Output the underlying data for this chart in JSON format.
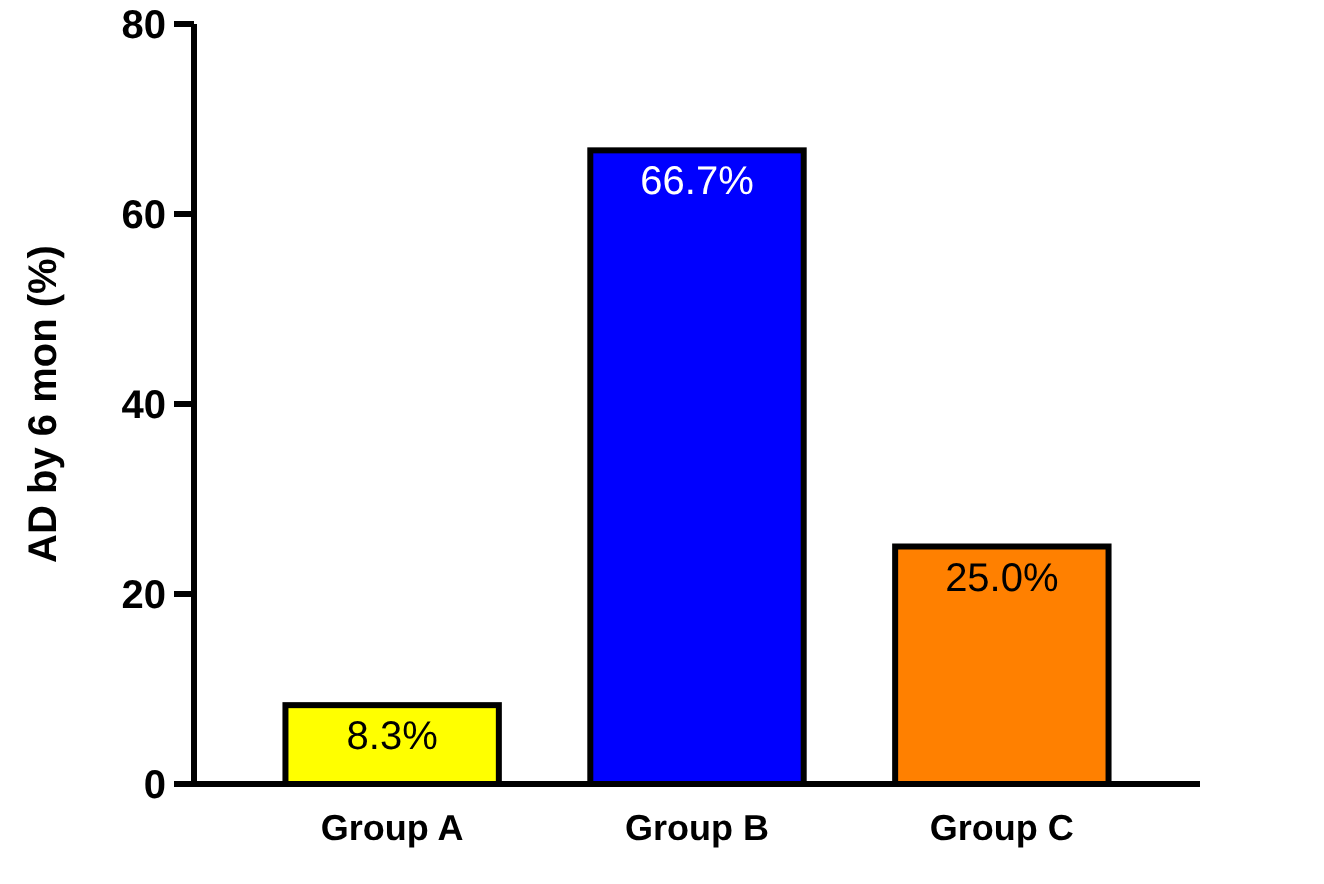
{
  "chart_data": {
    "type": "bar",
    "ylabel": "AD by 6 mon (%)",
    "categories": [
      "Group A",
      "Group B",
      "Group C"
    ],
    "values": [
      8.3,
      66.7,
      25.0
    ],
    "colors": [
      "#ffff00",
      "#0000ff",
      "#ff8000"
    ],
    "value_labels": [
      "8.3%",
      "66.7%",
      "25.0%"
    ],
    "ylim": [
      0,
      80
    ],
    "yticks": [
      0,
      20,
      40,
      60,
      80
    ],
    "grid": false
  }
}
